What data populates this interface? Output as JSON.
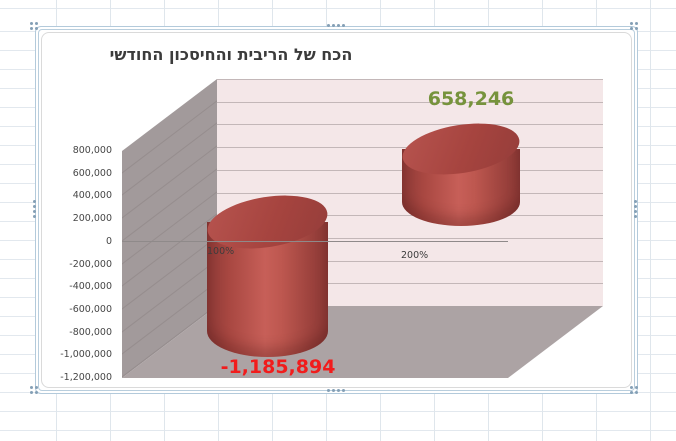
{
  "app": {
    "surface": "spreadsheet-grid",
    "selection_frame": "chart-selected"
  },
  "chart_data": {
    "type": "bar",
    "style": "3d-cylinder",
    "title": "הכח של הריבית והחיסכון החודשי",
    "categories": [
      "100%",
      "200%"
    ],
    "values": [
      -1185894,
      658246
    ],
    "data_labels": [
      {
        "text": "-1,185,894",
        "color": "#f11c1c"
      },
      {
        "text": "658,246",
        "color": "#76933c"
      }
    ],
    "xlabel": "",
    "ylabel": "",
    "ylim": [
      -1200000,
      800000
    ],
    "ytick_step": 200000,
    "yticks": [
      "800,000",
      "600,000",
      "400,000",
      "200,000",
      "0",
      "-200,000",
      "-400,000",
      "-600,000",
      "-800,000",
      "-1,000,000",
      "-1,200,000"
    ],
    "legend": "none",
    "grid": true,
    "series_color": "#b04a45",
    "wall_colors": {
      "back": "#f4e7e8",
      "side": "#a29a9b",
      "floor": "#aca3a4"
    }
  }
}
